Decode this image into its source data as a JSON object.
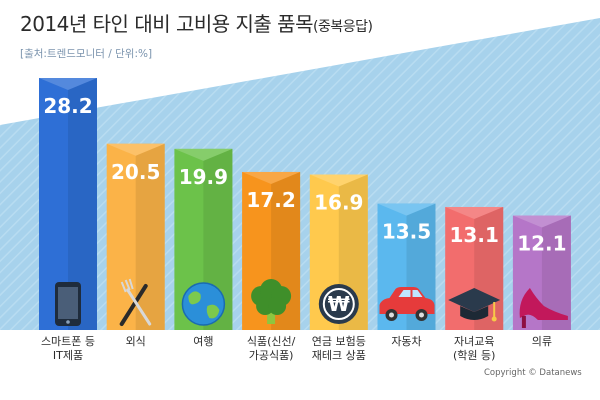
{
  "title": "2014년 타인 대비 고비용 지출 품목",
  "subtitle": "(중복응답)",
  "source": "[출처:트렌드모니터 / 단위:%]",
  "copyright": "Copyright © Datanews",
  "chart_data": {
    "type": "bar",
    "categories": [
      "스마트폰 등\nIT제품",
      "외식",
      "여행",
      "식품(신선/\n가공식품)",
      "연금 보험등\n재테크 상품",
      "자동차",
      "자녀교육\n(학원 등)",
      "의류"
    ],
    "values": [
      28.2,
      20.5,
      19.9,
      17.2,
      16.9,
      13.5,
      13.1,
      12.1
    ],
    "value_labels": [
      "28.2",
      "20.5",
      "19.9",
      "17.2",
      "16.9",
      "13.5",
      "13.1",
      "12.1"
    ],
    "colors": [
      "#2e6fd6",
      "#fbb348",
      "#6cc24a",
      "#f7941d",
      "#ffc94d",
      "#5bb8ee",
      "#f26d6d",
      "#b576c8"
    ],
    "icons": [
      "smartphone-icon",
      "fork-knife-icon",
      "globe-icon",
      "broccoli-icon",
      "won-coin-icon",
      "car-icon",
      "graduation-cap-icon",
      "high-heel-icon"
    ],
    "title": "2014년 타인 대비 고비용 지출 품목",
    "xlabel": "",
    "ylabel": "",
    "ylim": [
      0,
      30
    ],
    "legend": "none",
    "grid": false
  }
}
